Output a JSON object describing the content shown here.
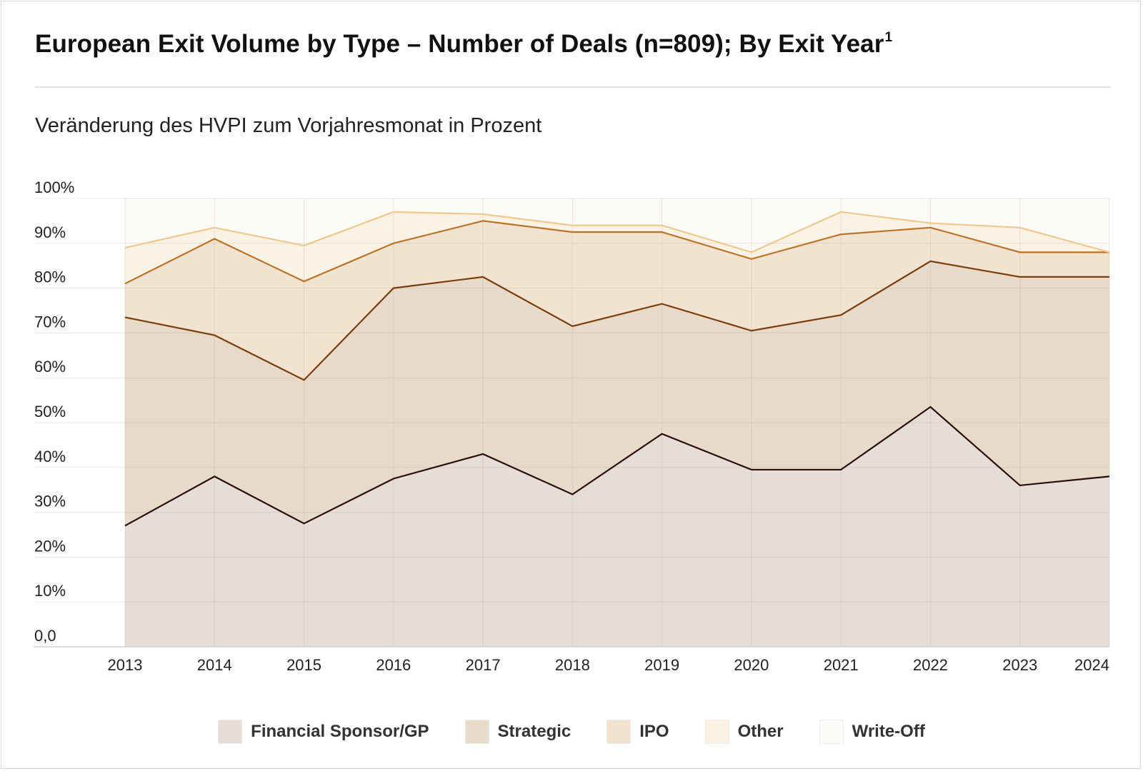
{
  "title": "European Exit Volume by Type – Number of Deals (n=809); By Exit Year",
  "title_superscript": "1",
  "subtitle": "Veränderung des HVPI zum Vorjahresmonat in Prozent",
  "chart_data": {
    "type": "area",
    "stacked": true,
    "x": [
      "2013",
      "2014",
      "2015",
      "2016",
      "2017",
      "2018",
      "2019",
      "2020",
      "2021",
      "2022",
      "2023",
      "2024"
    ],
    "y_ticks": [
      "0,0",
      "10%",
      "20%",
      "30%",
      "40%",
      "50%",
      "60%",
      "70%",
      "80%",
      "90%",
      "100%"
    ],
    "ylim": [
      0,
      100
    ],
    "grid": true,
    "legend_position": "bottom",
    "series": [
      {
        "name": "Financial Sponsor/GP",
        "color": "#e6ddd7",
        "line": "#2a0d0a",
        "values": [
          27,
          38,
          27.5,
          37.5,
          43,
          34,
          47.5,
          39.5,
          39.5,
          53.5,
          36,
          38
        ]
      },
      {
        "name": "Strategic",
        "color": "#e7dac8",
        "line": "#7a3e0e",
        "values": [
          73.5,
          69.5,
          59.5,
          80,
          82.5,
          71.5,
          76.5,
          70.5,
          74,
          86,
          82.5,
          82.5
        ]
      },
      {
        "name": "IPO",
        "color": "#f2e3d0",
        "line": "#b8742a",
        "values": [
          81,
          91,
          81.5,
          90,
          95,
          92.5,
          92.5,
          86.5,
          92,
          93.5,
          88,
          88
        ]
      },
      {
        "name": "Other",
        "color": "#fcf2e3",
        "line": "#edc98e",
        "values": [
          89,
          93.5,
          89.5,
          97,
          96.5,
          94,
          94,
          88,
          97,
          94.5,
          93.5,
          88
        ]
      },
      {
        "name": "Write-Off",
        "color": "#fdfbf8",
        "line": "none",
        "values": [
          100,
          100,
          100,
          100,
          100,
          100,
          100,
          100,
          100,
          100,
          100,
          100
        ]
      }
    ]
  }
}
